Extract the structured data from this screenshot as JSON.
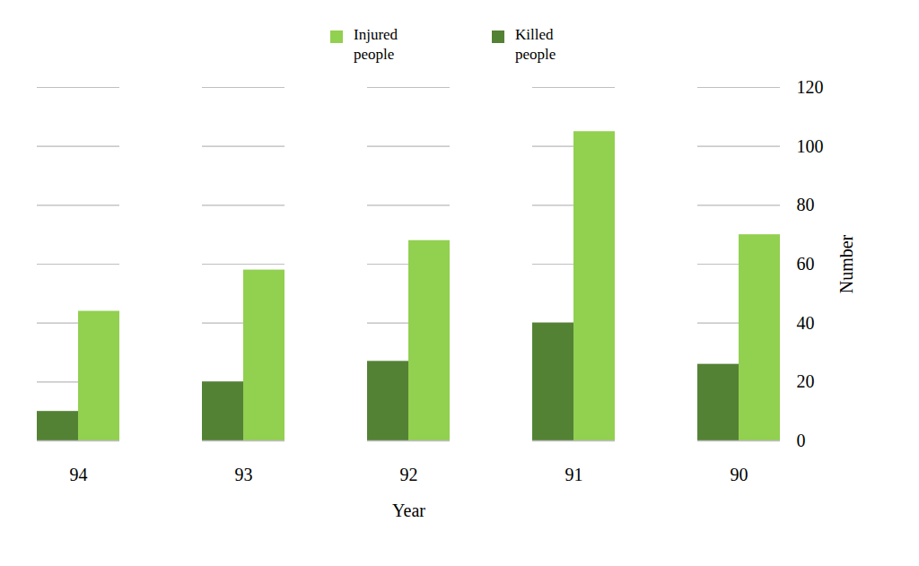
{
  "chart_data": {
    "type": "bar",
    "categories": [
      "94",
      "93",
      "92",
      "91",
      "90"
    ],
    "series": [
      {
        "name": "Injured people",
        "color": "#92d050",
        "values": [
          44,
          58,
          68,
          105,
          70
        ]
      },
      {
        "name": "Killed people",
        "color": "#548235",
        "values": [
          10,
          20,
          27,
          40,
          26
        ]
      }
    ],
    "xlabel": "Year",
    "ylabel": "Number",
    "ylim": [
      0,
      120
    ],
    "yticks": [
      0,
      20,
      40,
      60,
      80,
      100,
      120
    ],
    "grid": true,
    "legend": "top"
  }
}
